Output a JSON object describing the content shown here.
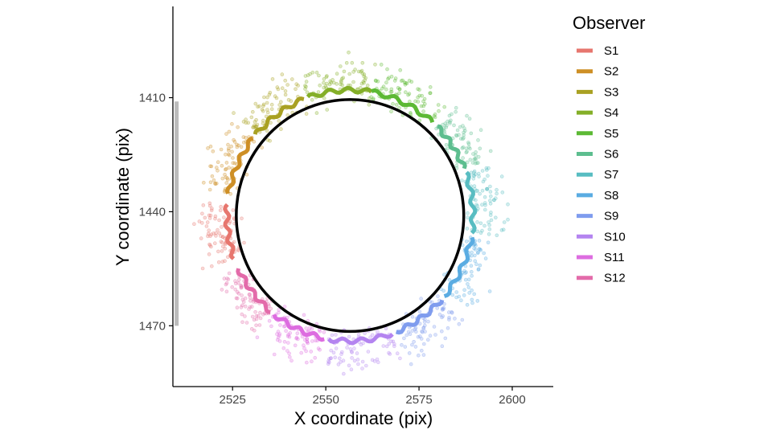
{
  "chart_data": {
    "type": "scatter",
    "title": "",
    "xlabel": "X coordinate (pix)",
    "ylabel": "Y coordinate (pix)",
    "xlim": [
      2509,
      2611
    ],
    "ylim": [
      1486,
      1386
    ],
    "y_reversed": true,
    "x_ticks": [
      2525,
      2550,
      2575,
      2600
    ],
    "y_ticks": [
      1410,
      1440,
      1470
    ],
    "grid": false,
    "legend_title": "Observer",
    "legend_position": "right",
    "circle": {
      "cx": 2556.5,
      "cy": 1441,
      "r": 30.5,
      "color": "#000000"
    },
    "reference_bar": {
      "x": 2510,
      "y_start": 1411,
      "y_end": 1470,
      "color": "#bbbbbb"
    },
    "series": [
      {
        "name": "S1",
        "color": "#E7766E",
        "angle_start": 175,
        "angle_end": 200
      },
      {
        "name": "S2",
        "color": "#CE8F25",
        "angle_start": 142,
        "angle_end": 170
      },
      {
        "name": "S3",
        "color": "#A9A122",
        "angle_start": 112,
        "angle_end": 140
      },
      {
        "name": "S4",
        "color": "#84AF28",
        "angle_start": 80,
        "angle_end": 110
      },
      {
        "name": "S5",
        "color": "#5CB934",
        "angle_start": 48,
        "angle_end": 80
      },
      {
        "name": "S6",
        "color": "#5DBE8F",
        "angle_start": 22,
        "angle_end": 45
      },
      {
        "name": "S7",
        "color": "#58BDC2",
        "angle_start": -8,
        "angle_end": 20
      },
      {
        "name": "S8",
        "color": "#5AACE2",
        "angle_start": -40,
        "angle_end": -10
      },
      {
        "name": "S9",
        "color": "#7F9CEE",
        "angle_start": -68,
        "angle_end": -42
      },
      {
        "name": "S10",
        "color": "#B484F0",
        "angle_start": -100,
        "angle_end": -70
      },
      {
        "name": "S11",
        "color": "#DD6DE0",
        "angle_start": -128,
        "angle_end": -102
      },
      {
        "name": "S12",
        "color": "#E36BAA",
        "angle_start": -155,
        "angle_end": -130
      }
    ]
  }
}
